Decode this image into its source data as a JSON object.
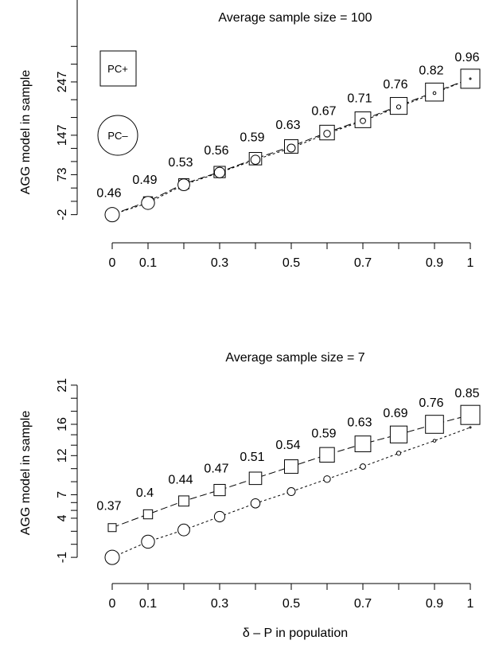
{
  "chart_data": [
    {
      "type": "scatter",
      "title": "Average sample size = 100",
      "ylabel": "AGG model in sample",
      "x": [
        0,
        0.1,
        0.2,
        0.3,
        0.4,
        0.5,
        0.6,
        0.7,
        0.8,
        0.9,
        1
      ],
      "x_tick_labels": [
        "0",
        "0.1",
        "0.3",
        "0.5",
        "0.7",
        "0.9",
        "1"
      ],
      "x_tick_values": [
        0,
        0.1,
        0.3,
        0.5,
        0.7,
        0.9,
        1
      ],
      "y_tick_labels": [
        "-2",
        "73",
        "147",
        "247"
      ],
      "y_tick_values": [
        -2,
        73,
        147,
        247
      ],
      "ylim": [
        -13,
        335
      ],
      "series": [
        {
          "name": "PC+",
          "marker": "square",
          "line": "dashed",
          "values": [
            -2,
            23,
            56,
            78,
            103,
            126,
            152,
            176,
            202,
            228,
            253
          ]
        },
        {
          "name": "PC–",
          "marker": "circle",
          "line": "dotted",
          "values": [
            -2,
            20,
            54,
            77,
            101,
            123,
            150,
            174,
            200,
            226,
            253
          ]
        }
      ],
      "point_labels": [
        "0.46",
        "0.49",
        "0.53",
        "0.56",
        "0.59",
        "0.63",
        "0.67",
        "0.71",
        "0.76",
        "0.82",
        "0.96"
      ],
      "legend": {
        "placement": "top-left",
        "entries": [
          "PC+",
          "PC–"
        ]
      }
    },
    {
      "type": "scatter",
      "title": "Average sample size = 7",
      "ylabel": "AGG model in sample",
      "x": [
        0,
        0.1,
        0.2,
        0.3,
        0.4,
        0.5,
        0.6,
        0.7,
        0.8,
        0.9,
        1
      ],
      "x_tick_labels": [
        "0",
        "0.1",
        "0.3",
        "0.5",
        "0.7",
        "0.9",
        "1"
      ],
      "x_tick_values": [
        0,
        0.1,
        0.3,
        0.5,
        0.7,
        0.9,
        1
      ],
      "y_tick_labels": [
        "-1",
        "4",
        "7",
        "12",
        "16",
        "21"
      ],
      "y_tick_values": [
        -1,
        4,
        7,
        12,
        16,
        21
      ],
      "ylim": [
        -1.6,
        22
      ],
      "series": [
        {
          "name": "PC+",
          "marker": "square",
          "line": "dashed",
          "values": [
            2.8,
            4.5,
            6.2,
            7.6,
            9.1,
            10.6,
            12.1,
            13.5,
            14.7,
            16.0,
            17.2
          ]
        },
        {
          "name": "PC–",
          "marker": "circle",
          "line": "dotted",
          "values": [
            -1.0,
            1.0,
            2.5,
            4.2,
            5.9,
            7.4,
            9.0,
            10.6,
            12.3,
            13.9,
            15.6
          ]
        }
      ],
      "point_labels": [
        "0.37",
        "0.4",
        "0.44",
        "0.47",
        "0.51",
        "0.54",
        "0.59",
        "0.63",
        "0.69",
        "0.76",
        "0.85"
      ]
    }
  ],
  "shared_xlabel": "δ – P in population"
}
